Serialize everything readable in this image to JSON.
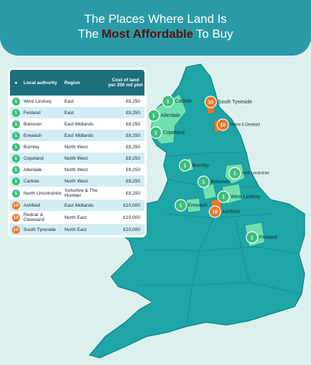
{
  "title": {
    "line1": "The Places Where Land Is",
    "line2": [
      "The",
      "Most Affordable",
      "To Buy"
    ]
  },
  "table": {
    "headers": [
      "Local authority",
      "Region",
      "Cost of land per 250 m2 plot"
    ],
    "rows": [
      {
        "rank": 1,
        "color": "#3bbf7b",
        "authority": "West Lindsey",
        "region": "East",
        "cost": "£9,250"
      },
      {
        "rank": 1,
        "color": "#3bbf7b",
        "authority": "Fenland",
        "region": "East",
        "cost": "£9,250"
      },
      {
        "rank": 1,
        "color": "#3bbf7b",
        "authority": "Bolsover",
        "region": "East Midlands",
        "cost": "£9,250"
      },
      {
        "rank": 1,
        "color": "#3bbf7b",
        "authority": "Erewash",
        "region": "East Midlands",
        "cost": "£9,250"
      },
      {
        "rank": 1,
        "color": "#3bbf7b",
        "authority": "Burnley",
        "region": "North West",
        "cost": "£9,250"
      },
      {
        "rank": 1,
        "color": "#3bbf7b",
        "authority": "Copeland",
        "region": "North West",
        "cost": "£9,250"
      },
      {
        "rank": 1,
        "color": "#3bbf7b",
        "authority": "Allerdale",
        "region": "North West",
        "cost": "£9,250"
      },
      {
        "rank": 1,
        "color": "#3bbf7b",
        "authority": "Carlisle",
        "region": "North West",
        "cost": "£9,250"
      },
      {
        "rank": 1,
        "color": "#3bbf7b",
        "authority": "North Lincolnshire",
        "region": "Yorkshire & The Humber",
        "cost": "£9,250"
      },
      {
        "rank": 10,
        "color": "#e8772a",
        "authority": "Ashfield",
        "region": "East Midlands",
        "cost": "£10,000"
      },
      {
        "rank": 10,
        "color": "#e8772a",
        "authority": "Redcar & Cleveland",
        "region": "North East",
        "cost": "£10,000"
      },
      {
        "rank": 10,
        "color": "#e8772a",
        "authority": "South Tyneside",
        "region": "North East",
        "cost": "£10,000"
      }
    ]
  },
  "map_labels": [
    {
      "rank": 1,
      "color": "#3bbf7b",
      "name": "Carlisle"
    },
    {
      "rank": 10,
      "color": "#e8772a",
      "name": "South Tyneside"
    },
    {
      "rank": 1,
      "color": "#3bbf7b",
      "name": "Allerdale"
    },
    {
      "rank": 10,
      "color": "#e8772a",
      "name": "Redcar & Cleveland"
    },
    {
      "rank": 1,
      "color": "#3bbf7b",
      "name": "Copeland"
    },
    {
      "rank": 1,
      "color": "#3bbf7b",
      "name": "Burnley"
    },
    {
      "rank": 1,
      "color": "#3bbf7b",
      "name": "North Lincolnshire"
    },
    {
      "rank": 1,
      "color": "#3bbf7b",
      "name": "Bolsover"
    },
    {
      "rank": 1,
      "color": "#3bbf7b",
      "name": "West Lindsey"
    },
    {
      "rank": 1,
      "color": "#3bbf7b",
      "name": "Erewash"
    },
    {
      "rank": 10,
      "color": "#e8772a",
      "name": "Ashfield"
    },
    {
      "rank": 1,
      "color": "#3bbf7b",
      "name": "Fenland"
    }
  ]
}
